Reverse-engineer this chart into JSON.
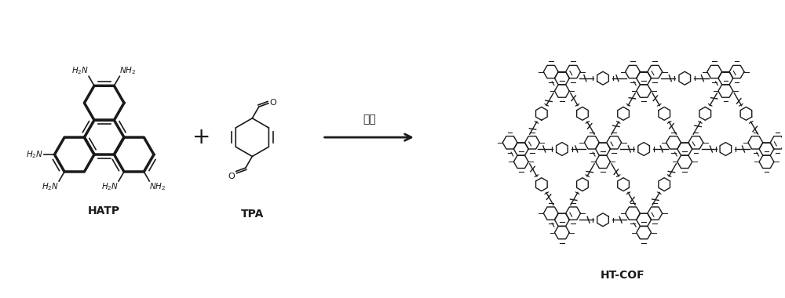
{
  "background_color": "#ffffff",
  "line_color": "#1a1a1a",
  "arrow_label": "乙酸",
  "label_hatp": "HATP",
  "label_tpa": "TPA",
  "label_product": "HT-COF",
  "figsize": [
    10.0,
    3.8
  ],
  "dpi": 100
}
